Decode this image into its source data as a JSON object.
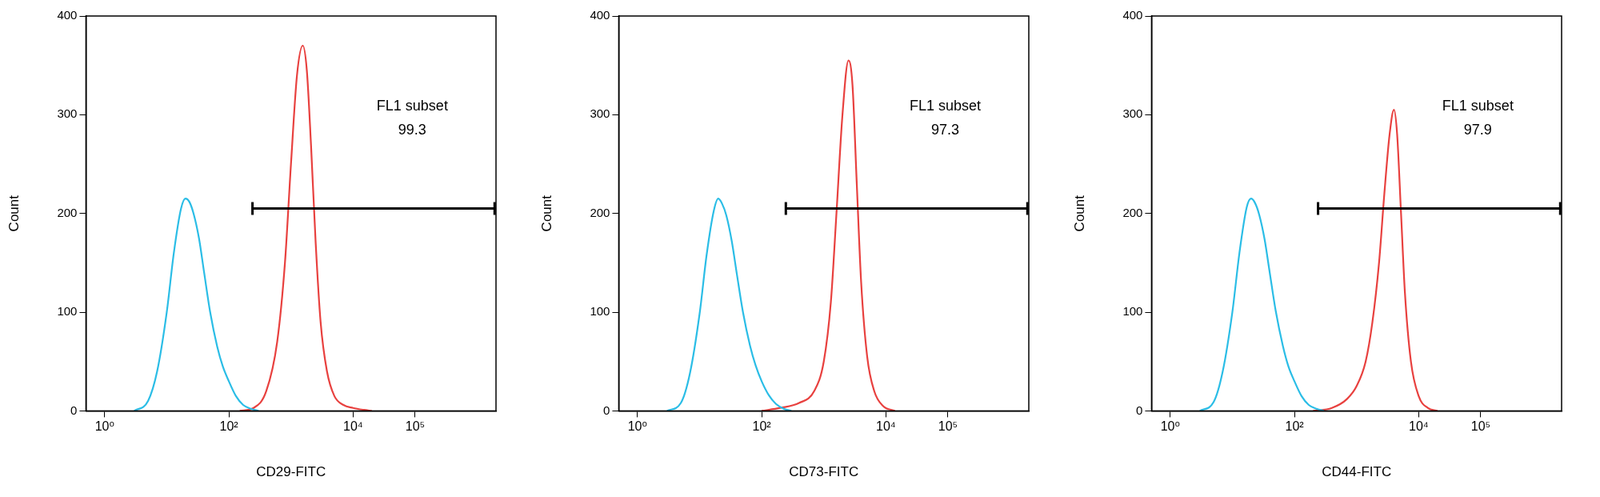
{
  "chart_data": [
    {
      "type": "line",
      "x_label": "CD29-FITC",
      "y_label": "Count",
      "log": "x",
      "grid": false,
      "tick_labels": true,
      "xlim": [
        0.5,
        2000000
      ],
      "xticks": [
        {
          "value": 1,
          "label": "10⁰"
        },
        {
          "value": 100,
          "label": "10²"
        },
        {
          "value": 10000,
          "label": "10⁴"
        },
        {
          "value": 100000,
          "label": "10⁵"
        }
      ],
      "ylim": [
        0,
        400
      ],
      "yticks": [
        0,
        100,
        200,
        300,
        400
      ],
      "series": [
        {
          "color": "#2bbde6",
          "x": [
            3,
            5,
            7,
            10,
            13,
            17,
            20,
            23,
            27,
            33,
            40,
            50,
            65,
            80,
            100,
            130,
            170,
            230,
            300
          ],
          "values": [
            0,
            10,
            40,
            100,
            160,
            205,
            215,
            212,
            200,
            175,
            140,
            100,
            65,
            45,
            30,
            15,
            6,
            2,
            0
          ]
        },
        {
          "color": "#e8413f",
          "x": [
            150,
            250,
            400,
            600,
            800,
            1000,
            1250,
            1550,
            1800,
            2100,
            2500,
            3000,
            3800,
            5000,
            7000,
            10000,
            15000,
            20000
          ],
          "values": [
            0,
            3,
            20,
            70,
            150,
            250,
            340,
            370,
            345,
            270,
            170,
            90,
            40,
            15,
            6,
            3,
            1,
            0
          ]
        }
      ],
      "gate": {
        "name": "FL1 subset",
        "percent": 99.3,
        "x": [
          240,
          1900000
        ],
        "y": 205
      }
    },
    {
      "type": "line",
      "x_label": "CD73-FITC",
      "y_label": "Count",
      "log": "x",
      "grid": false,
      "tick_labels": true,
      "xlim": [
        0.5,
        2000000
      ],
      "xticks": [
        {
          "value": 1,
          "label": "10⁰"
        },
        {
          "value": 100,
          "label": "10²"
        },
        {
          "value": 10000,
          "label": "10⁴"
        },
        {
          "value": 100000,
          "label": "10⁵"
        }
      ],
      "ylim": [
        0,
        400
      ],
      "yticks": [
        0,
        100,
        200,
        300,
        400
      ],
      "series": [
        {
          "color": "#2bbde6",
          "x": [
            3,
            5,
            7,
            10,
            13,
            17,
            20,
            23,
            27,
            33,
            40,
            50,
            65,
            80,
            100,
            130,
            170,
            230,
            300
          ],
          "values": [
            0,
            8,
            38,
            98,
            158,
            203,
            215,
            210,
            198,
            172,
            138,
            100,
            66,
            46,
            30,
            16,
            7,
            2,
            0
          ]
        },
        {
          "color": "#e8413f",
          "x": [
            100,
            200,
            400,
            700,
            1000,
            1300,
            1600,
            2000,
            2500,
            2900,
            3400,
            4000,
            5000,
            6500,
            9000,
            14000
          ],
          "values": [
            0,
            3,
            8,
            20,
            50,
            110,
            200,
            300,
            355,
            330,
            230,
            130,
            55,
            20,
            5,
            0
          ]
        }
      ],
      "gate": {
        "name": "FL1 subset",
        "percent": 97.3,
        "x": [
          245,
          1900000
        ],
        "y": 205
      }
    },
    {
      "type": "line",
      "x_label": "CD44-FITC",
      "y_label": "Count",
      "log": "x",
      "grid": false,
      "tick_labels": true,
      "xlim": [
        0.5,
        2000000
      ],
      "xticks": [
        {
          "value": 1,
          "label": "10⁰"
        },
        {
          "value": 100,
          "label": "10²"
        },
        {
          "value": 10000,
          "label": "10⁴"
        },
        {
          "value": 100000,
          "label": "10⁵"
        }
      ],
      "ylim": [
        0,
        400
      ],
      "yticks": [
        0,
        100,
        200,
        300,
        400
      ],
      "series": [
        {
          "color": "#2bbde6",
          "x": [
            3,
            5,
            7,
            10,
            13,
            17,
            20,
            23,
            27,
            33,
            40,
            50,
            65,
            80,
            100,
            130,
            170,
            230,
            300
          ],
          "values": [
            0,
            9,
            40,
            100,
            160,
            206,
            215,
            211,
            199,
            174,
            140,
            101,
            66,
            45,
            30,
            15,
            6,
            2,
            0
          ]
        },
        {
          "color": "#e8413f",
          "x": [
            200,
            400,
            700,
            1000,
            1400,
            1800,
            2300,
            2800,
            3400,
            4000,
            4500,
            5200,
            6000,
            7500,
            10000,
            14000,
            20000
          ],
          "values": [
            0,
            3,
            12,
            25,
            50,
            90,
            150,
            220,
            280,
            305,
            280,
            200,
            120,
            50,
            15,
            3,
            0
          ]
        }
      ],
      "gate": {
        "name": "FL1 subset",
        "percent": 97.9,
        "x": [
          240,
          1900000
        ],
        "y": 205
      }
    }
  ]
}
